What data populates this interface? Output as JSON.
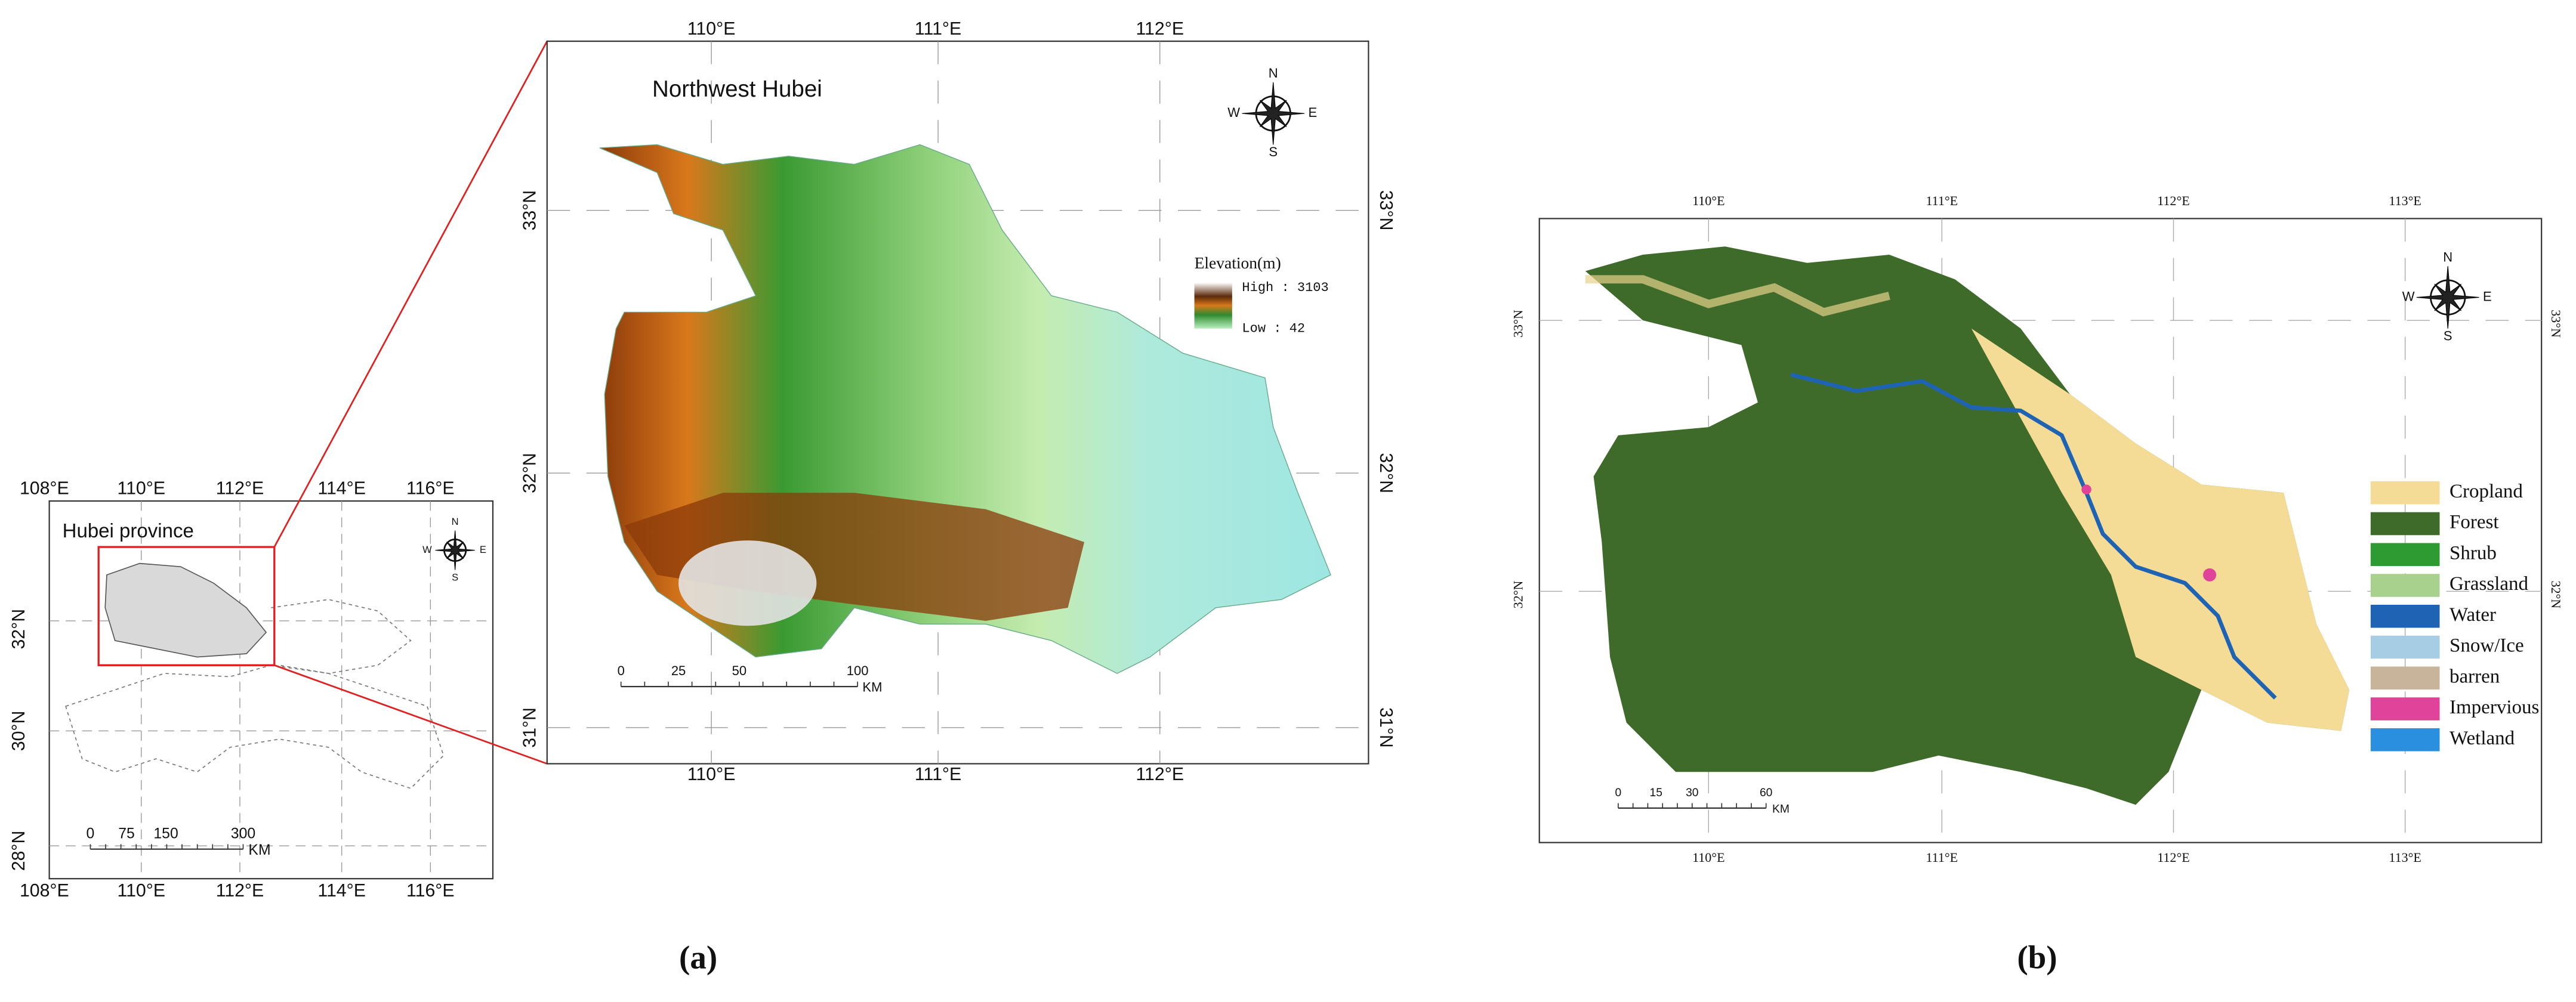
{
  "panel_a": {
    "inset_map": {
      "title": "Hubei province",
      "lon_labels": [
        "108°E",
        "110°E",
        "112°E",
        "114°E",
        "116°E"
      ],
      "lat_labels": [
        "32°N",
        "30°N",
        "28°N"
      ],
      "scale_labels": [
        "0",
        "75",
        "150",
        "300"
      ],
      "scale_unit": "KM",
      "compass": {
        "n": "N",
        "s": "S",
        "w": "W",
        "e": "E"
      }
    },
    "main_map": {
      "title": "Northwest Hubei",
      "lon_labels": [
        "110°E",
        "111°E",
        "112°E"
      ],
      "lat_labels": [
        "33°N",
        "32°N",
        "31°N"
      ],
      "legend": {
        "title": "Elevation(m)",
        "high": "High : 3103",
        "low": "Low : 42"
      },
      "scale_labels": [
        "0",
        "25",
        "50",
        "100"
      ],
      "scale_unit": "KM",
      "compass": {
        "n": "N",
        "s": "S",
        "w": "W",
        "e": "E"
      }
    },
    "caption": "(a)"
  },
  "panel_b": {
    "map": {
      "lon_labels": [
        "110°E",
        "111°E",
        "112°E",
        "113°E"
      ],
      "lat_labels": [
        "33°N",
        "32°N"
      ],
      "legend": [
        {
          "label": "Cropland",
          "color": "#f5dc96"
        },
        {
          "label": "Forest",
          "color": "#3f6b2a"
        },
        {
          "label": "Shrub",
          "color": "#2e9b32"
        },
        {
          "label": "Grassland",
          "color": "#a9d18e"
        },
        {
          "label": "Water",
          "color": "#1f64b4"
        },
        {
          "label": "Snow/Ice",
          "color": "#a6cde3"
        },
        {
          "label": "barren",
          "color": "#c8b49a"
        },
        {
          "label": "Impervious",
          "color": "#e0449a"
        },
        {
          "label": "Wetland",
          "color": "#2b8fe0"
        }
      ],
      "scale_labels": [
        "0",
        "15",
        "30",
        "60"
      ],
      "scale_unit": "KM",
      "compass": {
        "n": "N",
        "s": "S",
        "w": "W",
        "e": "E"
      }
    },
    "caption": "(b)"
  }
}
